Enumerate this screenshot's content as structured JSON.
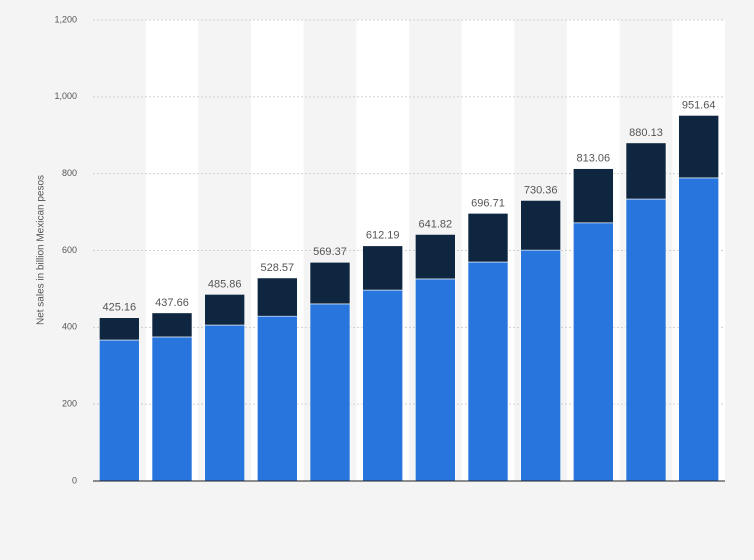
{
  "chart_data": {
    "type": "stacked_bar",
    "y_axis_label": "Net sales in billion Mexican pesos",
    "categories": [
      null,
      null,
      null,
      null,
      null,
      null,
      null,
      null,
      null,
      null,
      null,
      null
    ],
    "series": [
      {
        "color": "#2876dd",
        "values": [
          367,
          375,
          406,
          429,
          461,
          497,
          526,
          570,
          601,
          672,
          734,
          789
        ]
      },
      {
        "color": "#0f2640",
        "values": [
          58.16,
          62.66,
          79.86,
          99.57,
          108.37,
          115.19,
          115.82,
          126.71,
          129.36,
          141.06,
          146.13,
          162.64
        ]
      }
    ],
    "totals": [
      425.16,
      437.66,
      485.86,
      528.57,
      569.37,
      612.19,
      641.82,
      696.71,
      730.36,
      813.06,
      880.13,
      951.64
    ],
    "ylim": [
      0,
      1200
    ],
    "yticks": [
      0,
      200,
      400,
      600,
      800,
      {
        "value": 1000,
        "label": "1,000"
      },
      {
        "value": 1200,
        "label": "1,200"
      }
    ],
    "grid": true
  }
}
